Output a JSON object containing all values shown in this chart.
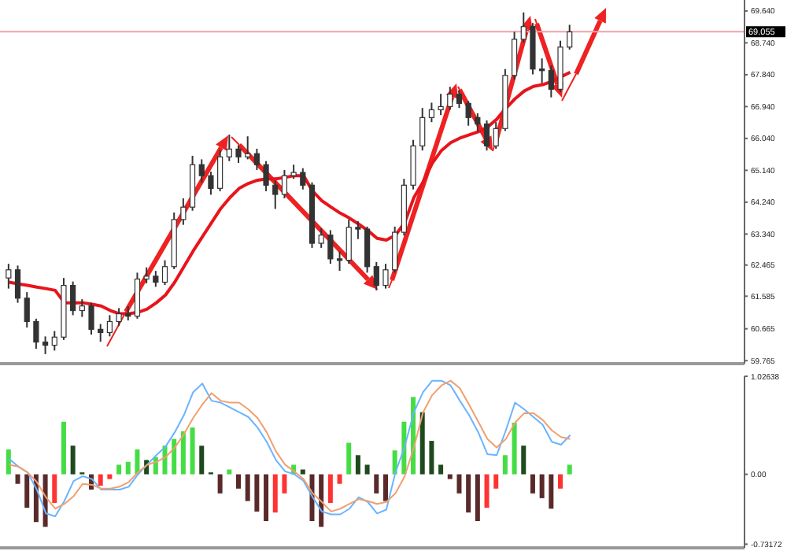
{
  "chart_data": [
    {
      "type": "candlestick",
      "color": "#333333",
      "categories": [
        null,
        null,
        null,
        null,
        null,
        null,
        null,
        null,
        null,
        null,
        null,
        null,
        null,
        null,
        null,
        null,
        null,
        null,
        null,
        null,
        null,
        null,
        null,
        null,
        null,
        null,
        null,
        null,
        null,
        null,
        null,
        null,
        null,
        null,
        null,
        null,
        null,
        null,
        null,
        null,
        null,
        null,
        null,
        null,
        null,
        null,
        null,
        null,
        null,
        null,
        null,
        null,
        null,
        null,
        null,
        null,
        null,
        null,
        null,
        null,
        null,
        null
      ],
      "ohlc": [
        [
          62.1,
          62.5,
          61.8,
          62.33
        ],
        [
          62.33,
          62.45,
          61.4,
          61.53
        ],
        [
          61.53,
          61.7,
          60.7,
          60.87
        ],
        [
          60.87,
          60.95,
          60.1,
          60.29
        ],
        [
          60.29,
          60.45,
          59.95,
          60.2
        ],
        [
          60.2,
          60.6,
          60.05,
          60.43
        ],
        [
          60.43,
          62.1,
          60.35,
          61.89
        ],
        [
          61.89,
          62.0,
          61.05,
          61.18
        ],
        [
          61.18,
          61.5,
          61.0,
          61.31
        ],
        [
          61.31,
          61.4,
          60.5,
          60.65
        ],
        [
          60.65,
          60.8,
          60.3,
          60.56
        ],
        [
          60.56,
          61.05,
          60.45,
          60.87
        ],
        [
          60.87,
          61.25,
          60.75,
          61.09
        ],
        [
          61.09,
          61.3,
          60.9,
          61.02
        ],
        [
          61.02,
          62.25,
          60.95,
          62.07
        ],
        [
          62.07,
          62.4,
          61.95,
          62.15
        ],
        [
          62.15,
          62.3,
          61.85,
          61.98
        ],
        [
          61.98,
          62.6,
          61.9,
          62.42
        ],
        [
          62.42,
          63.95,
          62.35,
          63.75
        ],
        [
          63.75,
          64.35,
          63.6,
          64.1
        ],
        [
          64.1,
          65.55,
          64.0,
          65.3
        ],
        [
          65.3,
          65.45,
          64.8,
          64.99
        ],
        [
          64.99,
          65.1,
          64.45,
          64.63
        ],
        [
          64.63,
          65.7,
          64.55,
          65.52
        ],
        [
          65.52,
          66.15,
          65.4,
          65.74
        ],
        [
          65.74,
          65.85,
          65.35,
          65.52
        ],
        [
          65.52,
          66.1,
          65.45,
          65.61
        ],
        [
          65.61,
          65.75,
          65.15,
          65.3
        ],
        [
          65.3,
          65.4,
          64.55,
          64.72
        ],
        [
          64.72,
          64.85,
          64.05,
          64.46
        ],
        [
          64.46,
          65.15,
          64.35,
          64.99
        ],
        [
          64.99,
          65.3,
          64.9,
          65.08
        ],
        [
          65.08,
          65.2,
          64.6,
          64.72
        ],
        [
          64.72,
          64.8,
          62.95,
          63.08
        ],
        [
          63.08,
          63.5,
          62.95,
          63.31
        ],
        [
          63.31,
          63.45,
          62.5,
          62.64
        ],
        [
          62.64,
          62.85,
          62.3,
          62.6
        ],
        [
          62.6,
          63.75,
          62.5,
          63.53
        ],
        [
          63.53,
          63.7,
          63.2,
          63.48
        ],
        [
          63.48,
          63.55,
          62.25,
          62.42
        ],
        [
          62.42,
          62.55,
          61.75,
          61.89
        ],
        [
          61.89,
          62.5,
          61.8,
          62.33
        ],
        [
          62.33,
          63.55,
          62.25,
          63.39
        ],
        [
          63.39,
          64.9,
          63.3,
          64.72
        ],
        [
          64.72,
          66.0,
          64.6,
          65.83
        ],
        [
          65.83,
          66.9,
          65.7,
          66.63
        ],
        [
          66.63,
          67.05,
          66.5,
          66.85
        ],
        [
          66.85,
          67.3,
          66.7,
          66.94
        ],
        [
          66.94,
          67.5,
          66.85,
          67.29
        ],
        [
          67.29,
          67.4,
          66.9,
          67.03
        ],
        [
          67.03,
          67.1,
          66.4,
          66.63
        ],
        [
          66.63,
          66.75,
          66.25,
          66.45
        ],
        [
          66.45,
          66.55,
          65.7,
          65.83
        ],
        [
          65.83,
          66.5,
          65.75,
          66.32
        ],
        [
          66.32,
          68.0,
          66.25,
          67.82
        ],
        [
          67.82,
          69.05,
          67.7,
          68.84
        ],
        [
          68.84,
          69.6,
          68.75,
          69.2
        ],
        [
          69.2,
          69.3,
          67.85,
          68.0
        ],
        [
          68.0,
          68.3,
          67.6,
          67.96
        ],
        [
          67.96,
          68.1,
          67.2,
          67.43
        ],
        [
          67.43,
          68.8,
          67.35,
          68.62
        ],
        [
          68.62,
          69.25,
          68.55,
          69.05
        ]
      ],
      "series": [
        {
          "type": "line",
          "color": "#e8141c",
          "values": [
            61.98,
            61.93,
            61.89,
            61.84,
            61.8,
            61.75,
            61.4,
            61.4,
            61.4,
            61.36,
            61.31,
            61.18,
            61.09,
            61.09,
            61.13,
            61.22,
            61.4,
            61.62,
            61.98,
            62.42,
            62.86,
            63.26,
            63.66,
            64.06,
            64.37,
            64.63,
            64.77,
            64.86,
            64.9,
            64.9,
            64.94,
            64.99,
            64.99,
            64.55,
            64.28,
            64.1,
            63.93,
            63.79,
            63.62,
            63.44,
            63.22,
            63.17,
            63.31,
            63.66,
            64.37,
            64.81,
            65.34,
            65.7,
            65.92,
            66.05,
            66.14,
            66.23,
            66.36,
            66.58,
            66.89,
            67.16,
            67.38,
            67.51,
            67.56,
            67.65,
            67.78,
            67.91
          ]
        }
      ],
      "ylim": [
        59.68,
        69.95
      ],
      "yticks": [
        {
          "value": 69.64,
          "label": "69.640"
        },
        {
          "value": 68.74,
          "label": "68.740"
        },
        {
          "value": 67.84,
          "label": "67.840"
        },
        {
          "value": 66.94,
          "label": "66.940"
        },
        {
          "value": 66.04,
          "label": "66.040"
        },
        {
          "value": 65.14,
          "label": "65.140"
        },
        {
          "value": 64.24,
          "label": "64.240"
        },
        {
          "value": 63.34,
          "label": "63.340"
        },
        62.465,
        61.585,
        60.665,
        59.765
      ],
      "ref_lines": [
        {
          "axis": "y",
          "value": 69.055,
          "label": "69.055",
          "color": "#f4a0aa"
        }
      ],
      "tick_labels": "y"
    },
    {
      "type": "bar",
      "categories": [
        null,
        null,
        null,
        null,
        null,
        null,
        null,
        null,
        null,
        null,
        null,
        null,
        null,
        null,
        null,
        null,
        null,
        null,
        null,
        null,
        null,
        null,
        null,
        null,
        null,
        null,
        null,
        null,
        null,
        null,
        null,
        null,
        null,
        null,
        null,
        null,
        null,
        null,
        null,
        null,
        null,
        null,
        null,
        null,
        null,
        null,
        null,
        null,
        null,
        null,
        null,
        null,
        null,
        null,
        null,
        null,
        null,
        null,
        null,
        null,
        null,
        null
      ],
      "series": [
        {
          "type": "bar",
          "values": [
            0.26,
            -0.1,
            -0.35,
            -0.5,
            -0.55,
            -0.3,
            0.55,
            0.3,
            0.02,
            -0.16,
            -0.12,
            -0.05,
            0.1,
            0.13,
            0.26,
            0.15,
            0.18,
            0.3,
            0.37,
            0.45,
            0.49,
            0.3,
            0.02,
            -0.2,
            0.05,
            -0.15,
            -0.28,
            -0.39,
            -0.49,
            -0.4,
            -0.2,
            0.1,
            0.05,
            -0.49,
            -0.55,
            -0.3,
            -0.1,
            0.33,
            0.2,
            0.1,
            -0.2,
            -0.28,
            0.25,
            0.55,
            0.81,
            0.65,
            0.35,
            0.1,
            -0.05,
            -0.2,
            -0.4,
            -0.49,
            -0.35,
            -0.15,
            0.2,
            0.54,
            0.3,
            -0.2,
            -0.25,
            -0.36,
            -0.15,
            0.1
          ],
          "colors": [
            "#44dd44",
            "#5a2a2a",
            "#5a2a2a",
            "#5a2a2a",
            "#5a2a2a",
            "#ff3333",
            "#44dd44",
            "#1e4a1e",
            "#1e4a1e",
            "#5a2a2a",
            "#ff3333",
            "#ff3333",
            "#44dd44",
            "#44dd44",
            "#44dd44",
            "#1e4a1e",
            "#44dd44",
            "#44dd44",
            "#44dd44",
            "#44dd44",
            "#44dd44",
            "#1e4a1e",
            "#1e4a1e",
            "#5a2a2a",
            "#44dd44",
            "#5a2a2a",
            "#5a2a2a",
            "#5a2a2a",
            "#5a2a2a",
            "#ff3333",
            "#ff3333",
            "#44dd44",
            "#1e4a1e",
            "#5a2a2a",
            "#5a2a2a",
            "#ff3333",
            "#ff3333",
            "#44dd44",
            "#1e4a1e",
            "#1e4a1e",
            "#5a2a2a",
            "#5a2a2a",
            "#44dd44",
            "#44dd44",
            "#44dd44",
            "#1e4a1e",
            "#1e4a1e",
            "#1e4a1e",
            "#5a2a2a",
            "#5a2a2a",
            "#5a2a2a",
            "#5a2a2a",
            "#ff3333",
            "#ff3333",
            "#44dd44",
            "#44dd44",
            "#1e4a1e",
            "#5a2a2a",
            "#5a2a2a",
            "#5a2a2a",
            "#ff3333",
            "#44dd44"
          ]
        },
        {
          "type": "line",
          "color": "#6ab4ff",
          "values": [
            0.16,
            0.08,
            0.02,
            -0.16,
            -0.41,
            -0.44,
            -0.28,
            -0.07,
            -0.02,
            -0.05,
            -0.16,
            -0.16,
            -0.16,
            -0.13,
            0.0,
            0.1,
            0.2,
            0.29,
            0.44,
            0.62,
            0.86,
            0.95,
            0.77,
            0.75,
            0.7,
            0.65,
            0.6,
            0.49,
            0.34,
            0.15,
            0.03,
            0.0,
            -0.07,
            -0.24,
            -0.39,
            -0.42,
            -0.42,
            -0.36,
            -0.24,
            -0.29,
            -0.41,
            -0.37,
            0.02,
            0.29,
            0.65,
            0.86,
            0.98,
            0.98,
            0.93,
            0.77,
            0.62,
            0.44,
            0.21,
            0.2,
            0.46,
            0.75,
            0.68,
            0.6,
            0.52,
            0.34,
            0.31,
            0.41
          ]
        },
        {
          "type": "line",
          "color": "#f0a070",
          "values": [
            0.1,
            0.08,
            0.02,
            -0.08,
            -0.24,
            -0.36,
            -0.31,
            -0.23,
            -0.1,
            -0.11,
            -0.15,
            -0.15,
            -0.13,
            -0.08,
            0.02,
            0.1,
            0.13,
            0.18,
            0.28,
            0.42,
            0.59,
            0.73,
            0.85,
            0.77,
            0.75,
            0.75,
            0.68,
            0.59,
            0.44,
            0.24,
            0.1,
            0.03,
            -0.05,
            -0.2,
            -0.29,
            -0.39,
            -0.36,
            -0.31,
            -0.26,
            -0.28,
            -0.31,
            -0.29,
            -0.2,
            -0.02,
            0.28,
            0.65,
            0.83,
            0.93,
            0.98,
            0.9,
            0.73,
            0.55,
            0.37,
            0.28,
            0.37,
            0.54,
            0.64,
            0.64,
            0.57,
            0.46,
            0.39,
            0.37
          ]
        }
      ],
      "ylim": [
        -0.77,
        1.02638
      ],
      "yticks": [
        1.02638,
        {
          "value": 0,
          "label": "0.00"
        },
        -0.73172
      ],
      "tick_labels": "y"
    }
  ]
}
